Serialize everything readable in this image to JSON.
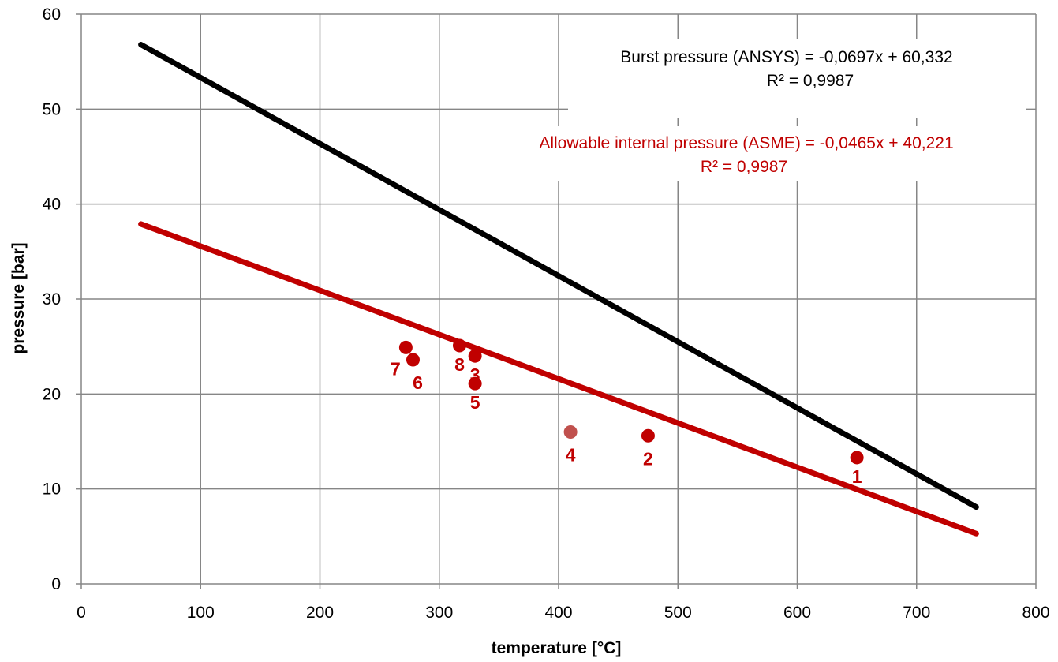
{
  "chart_data": {
    "type": "scatter",
    "xlabel": "temperature [°C]",
    "ylabel": "pressure [bar]",
    "xlim": [
      0,
      800
    ],
    "ylim": [
      0,
      60
    ],
    "xticks": [
      "0",
      "100",
      "200",
      "300",
      "400",
      "500",
      "600",
      "700",
      "800"
    ],
    "yticks": [
      "0",
      "10",
      "20",
      "30",
      "40",
      "50",
      "60"
    ],
    "grid": true,
    "lines": [
      {
        "name": "Burst pressure (ANSYS)",
        "x": [
          50,
          750
        ],
        "y": [
          56.8,
          8.1
        ],
        "color": "#000000",
        "equation": "Burst pressure (ANSYS)  = -0,0697x + 60,332",
        "r2": "R² = 0,9987"
      },
      {
        "name": "Allowable internal pressure (ASME)",
        "x": [
          50,
          750
        ],
        "y": [
          37.9,
          5.3
        ],
        "color": "#c00000",
        "equation": "Allowable internal pressure (ASME) = -0,0465x + 40,221",
        "r2": "R² = 0,9987"
      }
    ],
    "points": [
      {
        "label": "1",
        "x": 650,
        "y": 13.3,
        "color": "#c00000"
      },
      {
        "label": "2",
        "x": 475,
        "y": 15.6,
        "color": "#c00000"
      },
      {
        "label": "3",
        "x": 330,
        "y": 24.0,
        "color": "#c00000"
      },
      {
        "label": "4",
        "x": 410,
        "y": 16.0,
        "color": "#c0504d"
      },
      {
        "label": "5",
        "x": 330,
        "y": 21.1,
        "color": "#c00000"
      },
      {
        "label": "6",
        "x": 278,
        "y": 23.6,
        "color": "#c00000"
      },
      {
        "label": "7",
        "x": 272,
        "y": 24.9,
        "color": "#c00000"
      },
      {
        "label": "8",
        "x": 317,
        "y": 25.1,
        "color": "#c00000"
      }
    ]
  }
}
